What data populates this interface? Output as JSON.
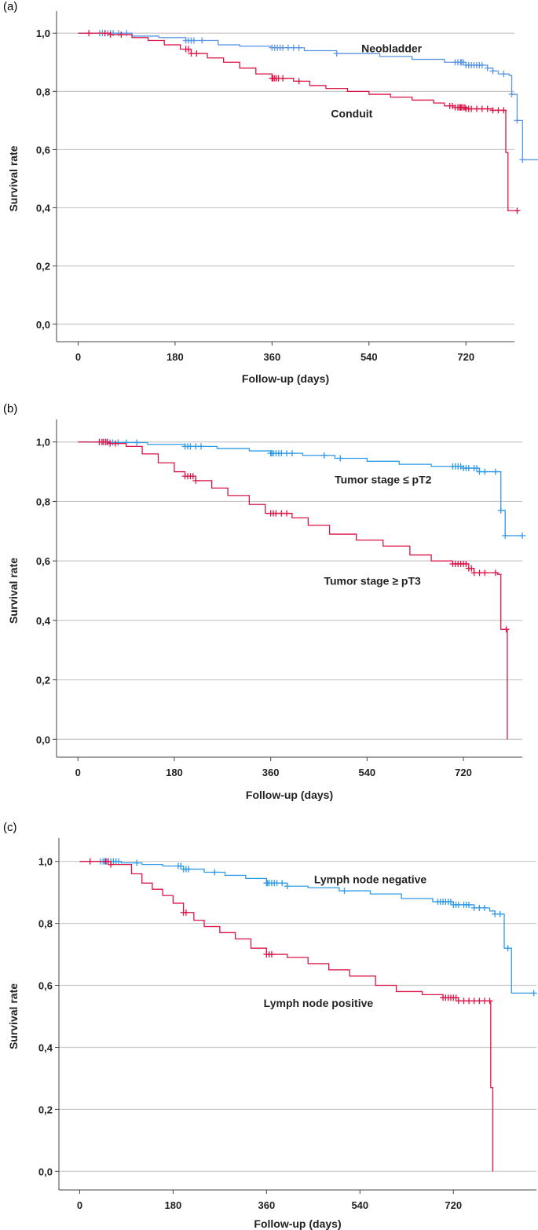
{
  "chart_data": [
    {
      "type": "line",
      "panel_label": "(a)",
      "xlabel": "Follow-up (days)",
      "ylabel": "Survival rate",
      "xticks": [
        "0",
        "180",
        "360",
        "540",
        "720"
      ],
      "xtick_values": [
        0,
        180,
        360,
        540,
        720
      ],
      "yticks": [
        "0,0",
        "0,2",
        "0,4",
        "0,6",
        "0,8",
        "1,0"
      ],
      "ytick_values": [
        0,
        0.2,
        0.4,
        0.6,
        0.8,
        1.0
      ],
      "xlim": [
        -40,
        810
      ],
      "ylim": [
        -0.06,
        1.06
      ],
      "grid": "horizontal",
      "series": [
        {
          "name": "Neobladder",
          "color": "#5b96e3",
          "step": [
            [
              0,
              1.0
            ],
            [
              100,
              0.99
            ],
            [
              150,
              0.985
            ],
            [
              200,
              0.975
            ],
            [
              260,
              0.96
            ],
            [
              300,
              0.955
            ],
            [
              360,
              0.95
            ],
            [
              420,
              0.94
            ],
            [
              480,
              0.93
            ],
            [
              560,
              0.92
            ],
            [
              620,
              0.91
            ],
            [
              680,
              0.9
            ],
            [
              720,
              0.89
            ],
            [
              760,
              0.88
            ],
            [
              770,
              0.87
            ],
            [
              780,
              0.86
            ],
            [
              800,
              0.855
            ],
            [
              805,
              0.79
            ],
            [
              815,
              0.7
            ],
            [
              825,
              0.565
            ],
            [
              870,
              0.565
            ]
          ],
          "censor_x": [
            40,
            45,
            50,
            55,
            60,
            65,
            75,
            90,
            200,
            205,
            210,
            215,
            230,
            360,
            365,
            370,
            375,
            380,
            390,
            400,
            410,
            480,
            700,
            705,
            710,
            712,
            715,
            720,
            725,
            730,
            735,
            740,
            745,
            750,
            760,
            770,
            790,
            805,
            815,
            825,
            870
          ]
        },
        {
          "name": "Conduit",
          "color": "#dc1446",
          "step": [
            [
              0,
              1.0
            ],
            [
              60,
              0.995
            ],
            [
              100,
              0.985
            ],
            [
              130,
              0.975
            ],
            [
              160,
              0.96
            ],
            [
              190,
              0.945
            ],
            [
              210,
              0.93
            ],
            [
              240,
              0.915
            ],
            [
              270,
              0.9
            ],
            [
              300,
              0.88
            ],
            [
              330,
              0.86
            ],
            [
              360,
              0.845
            ],
            [
              400,
              0.835
            ],
            [
              430,
              0.82
            ],
            [
              460,
              0.81
            ],
            [
              500,
              0.8
            ],
            [
              540,
              0.79
            ],
            [
              580,
              0.78
            ],
            [
              620,
              0.77
            ],
            [
              660,
              0.76
            ],
            [
              680,
              0.75
            ],
            [
              700,
              0.745
            ],
            [
              720,
              0.74
            ],
            [
              770,
              0.735
            ],
            [
              792,
              0.735
            ],
            [
              794,
              0.59
            ],
            [
              798,
              0.39
            ],
            [
              815,
              0.39
            ]
          ],
          "censor_x": [
            20,
            50,
            60,
            80,
            200,
            205,
            210,
            220,
            360,
            362,
            365,
            368,
            372,
            380,
            410,
            690,
            695,
            700,
            705,
            708,
            710,
            712,
            715,
            718,
            720,
            725,
            730,
            740,
            750,
            760,
            770,
            780,
            790,
            815
          ]
        }
      ],
      "annotations": [
        {
          "text": "Neobladder",
          "x": 582,
          "y": 0.935
        },
        {
          "text": "Conduit",
          "x": 508,
          "y": 0.71
        }
      ]
    },
    {
      "type": "line",
      "panel_label": "(b)",
      "xlabel": "Follow-up (days)",
      "ylabel": "Survival rate",
      "xticks": [
        "0",
        "180",
        "360",
        "540",
        "720"
      ],
      "xtick_values": [
        0,
        180,
        360,
        540,
        720
      ],
      "yticks": [
        "0,0",
        "0,2",
        "0,4",
        "0,6",
        "0,8",
        "1,0"
      ],
      "ytick_values": [
        0,
        0.2,
        0.4,
        0.6,
        0.8,
        1.0
      ],
      "xlim": [
        -40,
        830
      ],
      "ylim": [
        -0.06,
        1.06
      ],
      "grid": "horizontal",
      "series": [
        {
          "name": "Tumor stage ≤ pT2",
          "color": "#2f9ae6",
          "step": [
            [
              0,
              1.0
            ],
            [
              60,
              0.998
            ],
            [
              130,
              0.992
            ],
            [
              200,
              0.985
            ],
            [
              260,
              0.978
            ],
            [
              320,
              0.97
            ],
            [
              360,
              0.962
            ],
            [
              420,
              0.955
            ],
            [
              480,
              0.945
            ],
            [
              540,
              0.935
            ],
            [
              600,
              0.925
            ],
            [
              660,
              0.918
            ],
            [
              720,
              0.912
            ],
            [
              750,
              0.9
            ],
            [
              785,
              0.9
            ],
            [
              790,
              0.77
            ],
            [
              798,
              0.685
            ],
            [
              830,
              0.685
            ]
          ],
          "censor_x": [
            40,
            45,
            48,
            52,
            55,
            60,
            65,
            75,
            90,
            110,
            200,
            205,
            210,
            220,
            230,
            360,
            362,
            365,
            370,
            375,
            380,
            390,
            400,
            460,
            490,
            700,
            705,
            710,
            715,
            720,
            725,
            730,
            740,
            745,
            750,
            760,
            780,
            790,
            798,
            830
          ]
        },
        {
          "name": "Tumor stage ≥ pT3",
          "color": "#dc1446",
          "step": [
            [
              0,
              1.0
            ],
            [
              60,
              0.995
            ],
            [
              90,
              0.985
            ],
            [
              120,
              0.96
            ],
            [
              150,
              0.93
            ],
            [
              180,
              0.9
            ],
            [
              200,
              0.885
            ],
            [
              220,
              0.87
            ],
            [
              250,
              0.845
            ],
            [
              280,
              0.82
            ],
            [
              320,
              0.79
            ],
            [
              350,
              0.76
            ],
            [
              400,
              0.745
            ],
            [
              430,
              0.72
            ],
            [
              470,
              0.69
            ],
            [
              520,
              0.67
            ],
            [
              570,
              0.65
            ],
            [
              620,
              0.62
            ],
            [
              660,
              0.6
            ],
            [
              700,
              0.59
            ],
            [
              730,
              0.575
            ],
            [
              740,
              0.56
            ],
            [
              784,
              0.555
            ],
            [
              790,
              0.37
            ],
            [
              800,
              0.37
            ],
            [
              802,
              0.0
            ]
          ],
          "censor_x": [
            40,
            45,
            48,
            52,
            55,
            60,
            70,
            200,
            205,
            210,
            215,
            220,
            360,
            365,
            370,
            380,
            390,
            700,
            705,
            710,
            715,
            720,
            725,
            730,
            735,
            740,
            750,
            760,
            780,
            800
          ]
        }
      ],
      "annotations": [
        {
          "text": "Tumor stage ≤ pT2",
          "x": 570,
          "y": 0.86
        },
        {
          "text": "Tumor stage ≥ pT3",
          "x": 550,
          "y": 0.52
        }
      ]
    },
    {
      "type": "line",
      "panel_label": "(c)",
      "xlabel": "Follow-up (days)",
      "ylabel": "Survival rate",
      "xticks": [
        "0",
        "180",
        "360",
        "540",
        "720"
      ],
      "xtick_values": [
        0,
        180,
        360,
        540,
        720
      ],
      "yticks": [
        "0,0",
        "0,2",
        "0,4",
        "0,6",
        "0,8",
        "1,0"
      ],
      "ytick_values": [
        0,
        0.2,
        0.4,
        0.6,
        0.8,
        1.0
      ],
      "xlim": [
        -40,
        880
      ],
      "ylim": [
        -0.06,
        1.06
      ],
      "grid": "horizontal",
      "series": [
        {
          "name": "Lymph node negative",
          "color": "#2f9ae6",
          "step": [
            [
              0,
              1.0
            ],
            [
              80,
              0.995
            ],
            [
              120,
              0.99
            ],
            [
              160,
              0.985
            ],
            [
              200,
              0.975
            ],
            [
              240,
              0.965
            ],
            [
              280,
              0.955
            ],
            [
              320,
              0.945
            ],
            [
              360,
              0.93
            ],
            [
              400,
              0.92
            ],
            [
              440,
              0.915
            ],
            [
              500,
              0.905
            ],
            [
              560,
              0.895
            ],
            [
              620,
              0.88
            ],
            [
              680,
              0.87
            ],
            [
              720,
              0.86
            ],
            [
              760,
              0.85
            ],
            [
              790,
              0.84
            ],
            [
              800,
              0.83
            ],
            [
              815,
              0.83
            ],
            [
              818,
              0.72
            ],
            [
              828,
              0.72
            ],
            [
              832,
              0.575
            ],
            [
              875,
              0.575
            ]
          ],
          "censor_x": [
            40,
            45,
            48,
            52,
            55,
            60,
            65,
            70,
            75,
            110,
            190,
            195,
            200,
            205,
            210,
            260,
            360,
            362,
            365,
            370,
            375,
            380,
            390,
            400,
            510,
            690,
            695,
            700,
            705,
            710,
            715,
            720,
            725,
            730,
            740,
            745,
            750,
            760,
            770,
            780,
            800,
            810,
            825,
            875
          ]
        },
        {
          "name": "Lymph node positive",
          "color": "#dc1446",
          "step": [
            [
              0,
              1.0
            ],
            [
              60,
              0.99
            ],
            [
              100,
              0.96
            ],
            [
              120,
              0.93
            ],
            [
              140,
              0.91
            ],
            [
              160,
              0.89
            ],
            [
              180,
              0.865
            ],
            [
              200,
              0.835
            ],
            [
              220,
              0.81
            ],
            [
              240,
              0.79
            ],
            [
              270,
              0.77
            ],
            [
              300,
              0.75
            ],
            [
              330,
              0.72
            ],
            [
              360,
              0.7
            ],
            [
              400,
              0.69
            ],
            [
              440,
              0.67
            ],
            [
              480,
              0.65
            ],
            [
              520,
              0.63
            ],
            [
              570,
              0.6
            ],
            [
              610,
              0.58
            ],
            [
              660,
              0.57
            ],
            [
              700,
              0.56
            ],
            [
              730,
              0.55
            ],
            [
              790,
              0.55
            ],
            [
              792,
              0.27
            ],
            [
              796,
              0.0
            ]
          ],
          "censor_x": [
            20,
            50,
            55,
            60,
            200,
            205,
            360,
            365,
            370,
            700,
            705,
            710,
            715,
            720,
            725,
            730,
            740,
            750,
            760,
            770,
            780,
            790
          ]
        }
      ],
      "annotations": [
        {
          "text": "Lymph node negative",
          "x": 560,
          "y": 0.93
        },
        {
          "text": "Lymph node positive",
          "x": 460,
          "y": 0.53
        }
      ]
    }
  ]
}
